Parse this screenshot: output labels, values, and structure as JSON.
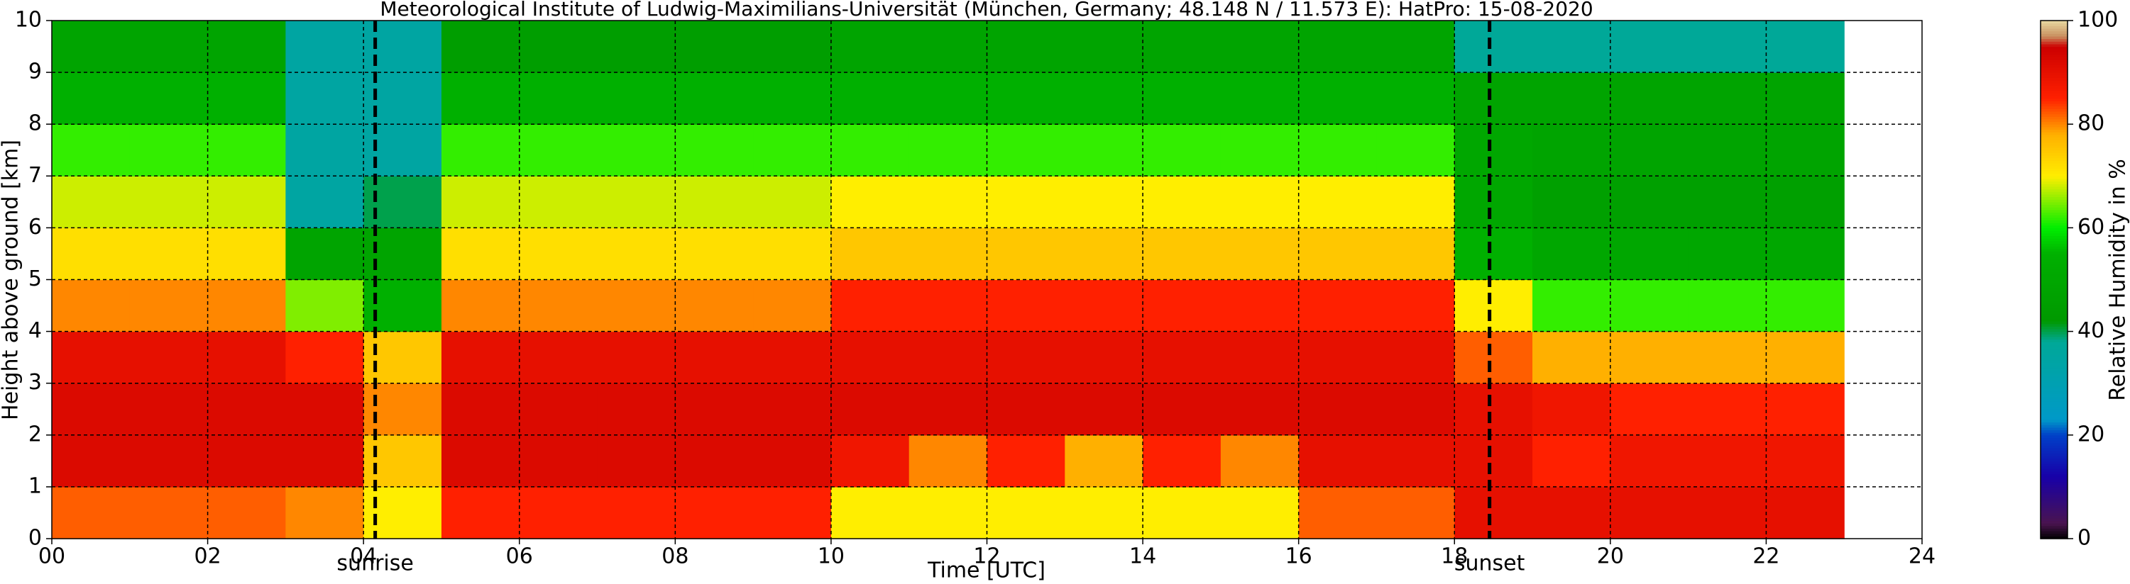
{
  "chart_data": {
    "type": "heatmap",
    "title": "Meteorological Institute of Ludwig-Maximilians-Universität (München, Germany; 48.148 N / 11.573 E):    HatPro: 15-08-2020",
    "xlabel": "Time [UTC]",
    "ylabel": "Height above ground [km]",
    "xlim": [
      0,
      24
    ],
    "ylim": [
      0,
      10
    ],
    "xticks": [
      {
        "value": 0,
        "label": "00"
      },
      {
        "value": 2,
        "label": "02"
      },
      {
        "value": 4,
        "label": "04"
      },
      {
        "value": 6,
        "label": "06"
      },
      {
        "value": 8,
        "label": "08"
      },
      10,
      12,
      14,
      16,
      18,
      20,
      22,
      24
    ],
    "yticks": [
      0,
      1,
      2,
      3,
      4,
      5,
      6,
      7,
      8,
      9,
      10
    ],
    "grid": true,
    "x_bins": [
      0,
      1,
      2,
      3,
      4,
      5,
      6,
      7,
      8,
      9,
      10,
      11,
      12,
      13,
      14,
      15,
      16,
      17,
      18,
      19,
      20,
      21,
      22,
      23
    ],
    "y_bins": [
      0,
      1,
      2,
      3,
      4,
      5,
      6,
      7,
      8,
      9,
      10
    ],
    "z": [
      [
        82,
        82,
        82,
        80,
        70,
        85,
        85,
        85,
        85,
        85,
        70,
        70,
        70,
        70,
        70,
        70,
        82,
        82,
        90,
        90,
        90,
        90,
        90
      ],
      [
        92,
        92,
        92,
        92,
        75,
        92,
        92,
        92,
        92,
        92,
        88,
        80,
        85,
        78,
        85,
        80,
        90,
        90,
        90,
        85,
        88,
        88,
        88
      ],
      [
        92,
        92,
        92,
        92,
        80,
        92,
        92,
        92,
        92,
        92,
        92,
        92,
        92,
        92,
        92,
        92,
        92,
        92,
        90,
        88,
        85,
        85,
        85
      ],
      [
        90,
        90,
        90,
        85,
        75,
        90,
        90,
        90,
        90,
        90,
        90,
        90,
        90,
        90,
        90,
        90,
        90,
        90,
        82,
        78,
        78,
        78,
        78
      ],
      [
        80,
        80,
        80,
        65,
        55,
        80,
        80,
        80,
        80,
        80,
        85,
        85,
        85,
        85,
        85,
        85,
        85,
        85,
        70,
        62,
        62,
        62,
        62
      ],
      [
        72,
        72,
        72,
        48,
        48,
        72,
        72,
        72,
        72,
        72,
        75,
        75,
        75,
        75,
        75,
        75,
        75,
        75,
        55,
        50,
        50,
        50,
        50
      ],
      [
        68,
        68,
        68,
        35,
        40,
        68,
        68,
        68,
        68,
        68,
        70,
        70,
        70,
        70,
        70,
        70,
        70,
        70,
        50,
        46,
        46,
        46,
        46
      ],
      [
        62,
        62,
        62,
        35,
        35,
        62,
        62,
        62,
        62,
        62,
        62,
        62,
        62,
        62,
        62,
        62,
        62,
        62,
        50,
        48,
        48,
        48,
        48
      ],
      [
        55,
        55,
        55,
        35,
        35,
        55,
        55,
        55,
        55,
        55,
        55,
        55,
        55,
        55,
        55,
        55,
        55,
        55,
        48,
        48,
        48,
        48,
        48
      ],
      [
        48,
        48,
        48,
        35,
        35,
        45,
        45,
        45,
        45,
        45,
        48,
        48,
        48,
        48,
        48,
        48,
        48,
        48,
        38,
        38,
        38,
        38,
        38
      ]
    ],
    "colormap": [
      {
        "value": 0,
        "color": "#000000"
      },
      {
        "value": 3,
        "color": "#4a1450"
      },
      {
        "value": 12,
        "color": "#1800a8"
      },
      {
        "value": 20,
        "color": "#0040c8"
      },
      {
        "value": 23,
        "color": "#0099c8"
      },
      {
        "value": 38,
        "color": "#00a898"
      },
      {
        "value": 42,
        "color": "#009900"
      },
      {
        "value": 55,
        "color": "#00b000"
      },
      {
        "value": 60,
        "color": "#00ee00"
      },
      {
        "value": 70,
        "color": "#ffee00"
      },
      {
        "value": 78,
        "color": "#ffb000"
      },
      {
        "value": 85,
        "color": "#ff2000"
      },
      {
        "value": 95,
        "color": "#cc0000"
      },
      {
        "value": 97,
        "color": "#c89060"
      },
      {
        "value": 100,
        "color": "#e8d8a0"
      }
    ],
    "colorbar": {
      "label": "Relative Humidity in %",
      "lim": [
        0,
        100
      ],
      "ticks": [
        0,
        20,
        40,
        60,
        80,
        100
      ]
    },
    "vlines": [
      {
        "x": 4.15,
        "label": "sunrise"
      },
      {
        "x": 18.45,
        "label": "sunset"
      }
    ]
  }
}
